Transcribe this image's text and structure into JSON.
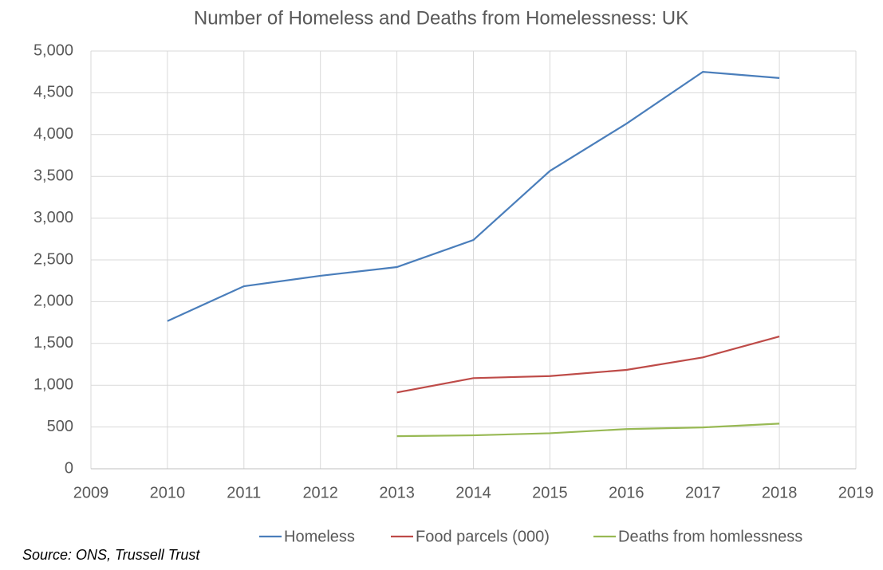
{
  "chart_data": {
    "type": "line",
    "title": "Number of Homeless and Deaths from Homelessness: UK",
    "source": "Source: ONS, Trussell Trust",
    "x": [
      2010,
      2011,
      2012,
      2013,
      2014,
      2015,
      2016,
      2017,
      2018
    ],
    "series": [
      {
        "name": "Homeless",
        "color": "#4a7ebb",
        "values": [
          1768,
          2185,
          2310,
          2414,
          2738,
          3565,
          4130,
          4751,
          4677
        ]
      },
      {
        "name": "Food parcels (000)",
        "color": "#be4b48",
        "values": [
          null,
          null,
          null,
          913,
          1085,
          1109,
          1183,
          1333,
          1583
        ]
      },
      {
        "name": "Deaths from homlessness",
        "color": "#98b954",
        "values": [
          null,
          null,
          null,
          390,
          400,
          425,
          475,
          495,
          540
        ]
      }
    ],
    "xlim": [
      2009,
      2019
    ],
    "xticks": [
      2009,
      2010,
      2011,
      2012,
      2013,
      2014,
      2015,
      2016,
      2017,
      2018,
      2019
    ],
    "ylim": [
      0,
      5000
    ],
    "yticks": [
      0,
      500,
      {
        "value": 1000,
        "label": "1,000"
      },
      {
        "value": 1500,
        "label": "1,500"
      },
      {
        "value": 2000,
        "label": "2,000"
      },
      {
        "value": 2500,
        "label": "2,500"
      },
      {
        "value": 3000,
        "label": "3,000"
      },
      {
        "value": 3500,
        "label": "3,500"
      },
      {
        "value": 4000,
        "label": "4,000"
      },
      {
        "value": 4500,
        "label": "4,500"
      },
      {
        "value": 5000,
        "label": "5,000"
      }
    ],
    "grid": true,
    "legend": "bottom"
  }
}
